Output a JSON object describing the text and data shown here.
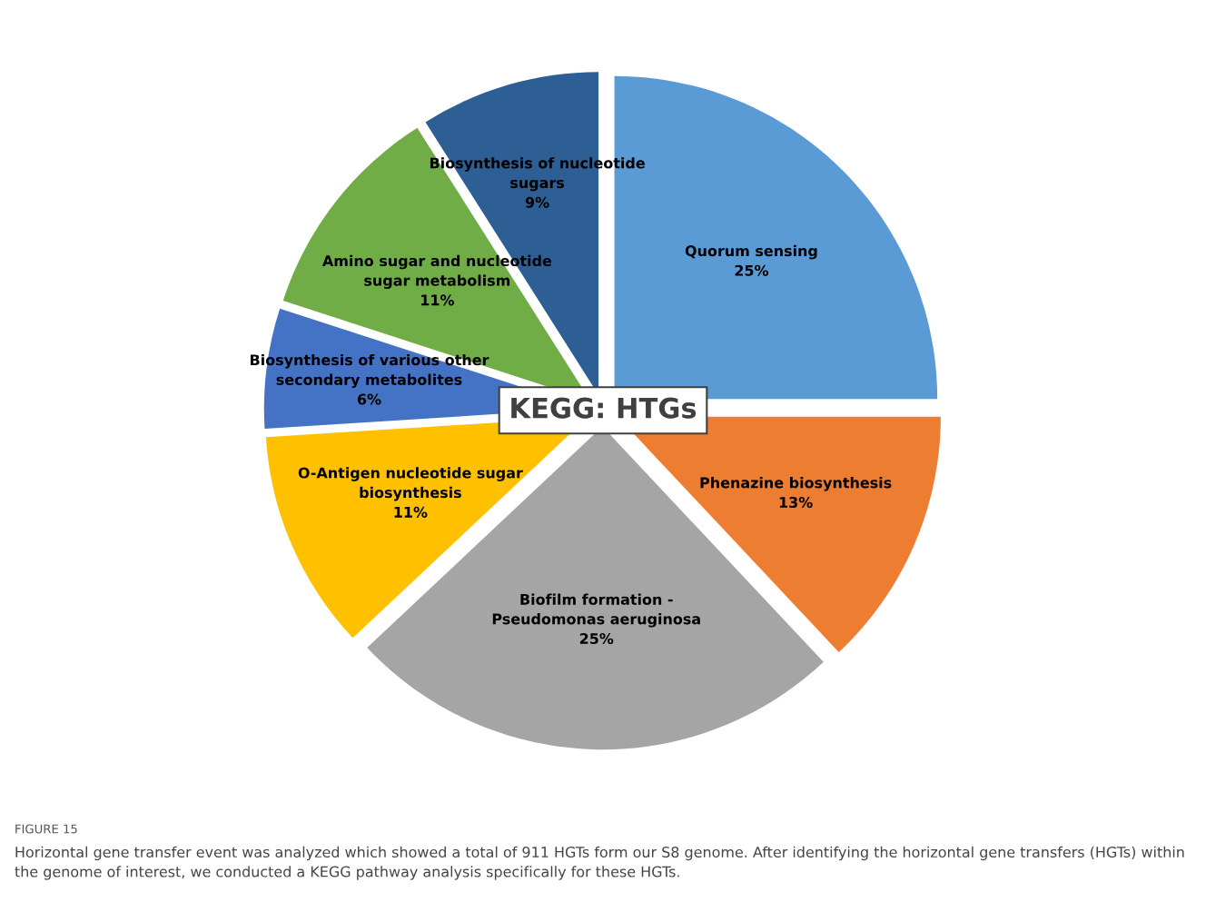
{
  "chart_data": {
    "type": "pie",
    "title": "KEGG: HTGs",
    "categories": [
      "Quorum sensing",
      "Phenazine biosynthesis",
      "Biofilm formation -\nPseudomonas aeruginosa",
      "O-Antigen nucleotide sugar\nbiosynthesis",
      "Biosynthesis of various other\nsecondary metabolites",
      "Amino sugar and nucleotide\nsugar metabolism",
      "Biosynthesis of nucleotide\nsugars"
    ],
    "values": [
      25,
      13,
      25,
      11,
      6,
      11,
      9
    ],
    "value_labels": [
      "25%",
      "13%",
      "25%",
      "11%",
      "6%",
      "11%",
      "9%"
    ],
    "colors": [
      "#5b9bd5",
      "#ed7d31",
      "#a5a5a5",
      "#ffc000",
      "#4472c4",
      "#70ad47",
      "#2e5f94"
    ],
    "legend": false,
    "annotations": [
      "FIGURE 15",
      "Horizontal gene transfer event was analyzed which showed a total of 911 HGTs form our S8 genome. After identifying the horizontal gene transfers (HGTs) within the genome of interest, we conducted a KEGG pathway analysis specifically for these HGTs."
    ]
  }
}
